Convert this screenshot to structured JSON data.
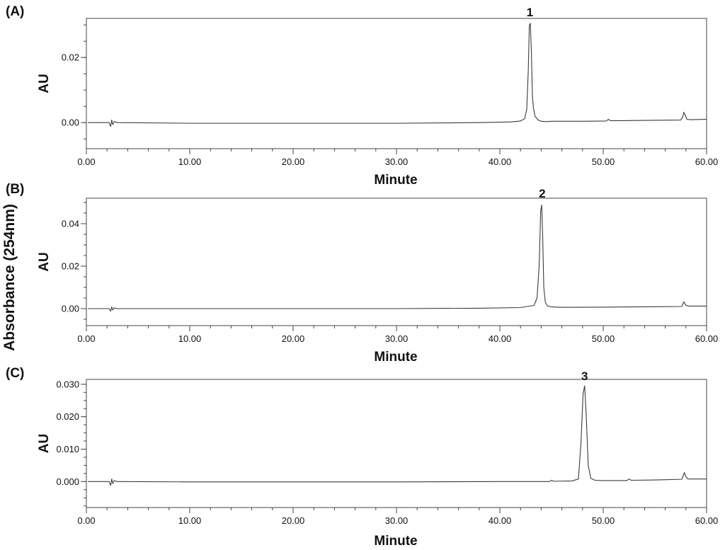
{
  "figure": {
    "ylabel": "Absorbance (254nm)"
  },
  "chart_data": [
    {
      "type": "line",
      "panel_label": "(A)",
      "xlabel": "Minute",
      "ylabel": "AU",
      "xlim": [
        0,
        60
      ],
      "ylim": [
        -0.008,
        0.032
      ],
      "x_ticks": [
        "0.00",
        "10.00",
        "20.00",
        "30.00",
        "40.00",
        "50.00",
        "60.00"
      ],
      "y_ticks": [
        "0.00",
        "0.02"
      ],
      "y_tick_values": [
        0,
        0.02
      ],
      "peak_label": {
        "text": "1",
        "x": 42.9,
        "y": 0.0305
      },
      "series": [
        {
          "x": [
            0.15,
            2.2,
            2.35,
            2.45,
            2.55,
            2.7,
            3.0,
            10.0,
            20.0,
            30.0,
            38.0,
            41.0,
            42.0,
            42.4,
            42.6,
            42.75,
            42.85,
            42.95,
            43.05,
            43.15,
            43.25,
            43.4,
            43.7,
            44.0,
            44.5,
            45.0,
            48.0,
            50.3,
            50.5,
            50.7,
            52.0,
            55.0,
            57.5,
            57.7,
            57.8,
            57.9,
            58.1,
            58.5,
            60.0
          ],
          "y": [
            0.0,
            0.0,
            -0.0012,
            0.0008,
            -0.0006,
            0.0003,
            0.0,
            -0.0002,
            -0.0002,
            -0.0002,
            0.0,
            0.0002,
            0.0005,
            0.0012,
            0.004,
            0.016,
            0.0298,
            0.0305,
            0.022,
            0.008,
            0.0045,
            0.002,
            0.0008,
            0.0004,
            0.0003,
            0.0004,
            0.0004,
            0.0005,
            0.001,
            0.0006,
            0.0006,
            0.0007,
            0.0008,
            0.0018,
            0.0032,
            0.0025,
            0.001,
            0.0009,
            0.001
          ]
        }
      ]
    },
    {
      "type": "line",
      "panel_label": "(B)",
      "xlabel": "Minute",
      "ylabel": "AU",
      "xlim": [
        0,
        60
      ],
      "ylim": [
        -0.008,
        0.052
      ],
      "x_ticks": [
        "0.00",
        "10.00",
        "20.00",
        "30.00",
        "40.00",
        "50.00",
        "60.00"
      ],
      "y_ticks": [
        "0.00",
        "0.02",
        "0.04"
      ],
      "y_tick_values": [
        0,
        0.02,
        0.04
      ],
      "peak_label": {
        "text": "2",
        "x": 44.1,
        "y": 0.049
      },
      "series": [
        {
          "x": [
            0.15,
            2.2,
            2.35,
            2.45,
            2.55,
            2.7,
            3.0,
            10.0,
            20.0,
            30.0,
            38.0,
            42.0,
            43.3,
            43.6,
            43.8,
            43.95,
            44.05,
            44.15,
            44.25,
            44.4,
            44.6,
            45.0,
            46.0,
            50.0,
            55.0,
            57.6,
            57.8,
            57.95,
            58.2,
            60.0
          ],
          "y": [
            0.0,
            0.0,
            -0.0012,
            0.0008,
            -0.0006,
            0.0003,
            0.0,
            0.0,
            0.0,
            0.0,
            0.0002,
            0.0005,
            0.0015,
            0.005,
            0.02,
            0.046,
            0.0488,
            0.033,
            0.01,
            0.003,
            0.0013,
            0.0008,
            0.0006,
            0.0007,
            0.0009,
            0.001,
            0.0032,
            0.0018,
            0.0012,
            0.0012
          ]
        }
      ]
    },
    {
      "type": "line",
      "panel_label": "(C)",
      "xlabel": "Minute",
      "ylabel": "AU",
      "xlim": [
        0,
        60
      ],
      "ylim": [
        -0.008,
        0.0315
      ],
      "x_ticks": [
        "0.00",
        "10.00",
        "20.00",
        "30.00",
        "40.00",
        "50.00",
        "60.00"
      ],
      "y_ticks": [
        "0.000",
        "0.010",
        "0.020",
        "0.030"
      ],
      "y_tick_values": [
        0,
        0.01,
        0.02,
        0.03
      ],
      "peak_label": {
        "text": "3",
        "x": 48.2,
        "y": 0.0295
      },
      "series": [
        {
          "x": [
            0.15,
            2.2,
            2.35,
            2.45,
            2.55,
            2.7,
            3.0,
            10.0,
            20.0,
            30.0,
            40.0,
            44.8,
            45.0,
            45.2,
            47.0,
            47.6,
            47.85,
            48.05,
            48.2,
            48.35,
            48.55,
            48.8,
            49.2,
            50.0,
            52.3,
            52.5,
            52.7,
            55.0,
            57.6,
            57.85,
            58.0,
            58.2,
            60.0
          ],
          "y": [
            0.0,
            0.0,
            -0.0012,
            0.0008,
            -0.0006,
            0.0003,
            0.0,
            -0.0001,
            -0.0001,
            -0.0001,
            0.0,
            0.0,
            0.0004,
            0.0001,
            0.0002,
            0.0008,
            0.012,
            0.027,
            0.0295,
            0.021,
            0.005,
            0.001,
            0.0004,
            0.0003,
            0.0003,
            0.0008,
            0.0004,
            0.0005,
            0.0007,
            0.0028,
            0.0015,
            0.0008,
            0.0008
          ]
        }
      ]
    }
  ]
}
